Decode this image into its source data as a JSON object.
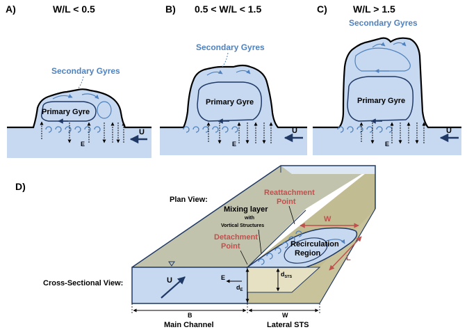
{
  "panels": [
    {
      "letter": "A)",
      "condition": "W/L < 0.5",
      "secondary": "Secondary Gyres",
      "primary": "Primary Gyre",
      "u": "U",
      "e": "E"
    },
    {
      "letter": "B)",
      "condition": "0.5 < W/L < 1.5",
      "secondary": "Secondary Gyres",
      "primary": "Primary Gyre",
      "u": "U",
      "e": "E"
    },
    {
      "letter": "C)",
      "condition": "W/L > 1.5",
      "secondary": "Secondary Gyres",
      "primary": "Primary Gyre",
      "u": "U",
      "e": "E"
    }
  ],
  "panel_d": {
    "letter": "D)",
    "plan_view": "Plan View:",
    "cross_view": "Cross-Sectional View:",
    "reattachment_1": "Reattachment",
    "reattachment_2": "Point",
    "detachment_1": "Detachment",
    "detachment_2": "Point",
    "mixing_1": "Mixing layer",
    "mixing_2": "with",
    "mixing_3": "Vortical Structures",
    "recirc_1": "Recirculation",
    "recirc_2": "Region",
    "w_red": "W",
    "l_red": "L",
    "u": "U",
    "e": "E",
    "de_main": "d",
    "de_sub": "E",
    "dsts_main": "d",
    "dsts_sub": "STS",
    "b": "B",
    "b_caption": "Main Channel",
    "w_bottom": "W",
    "w_caption": "Lateral STS"
  },
  "colors": {
    "water": "#c6d9f1",
    "gyre_blue": "#4f81bd",
    "dark_navy": "#1f3864",
    "red": "#c0504d",
    "bed": "#c8c39a"
  }
}
